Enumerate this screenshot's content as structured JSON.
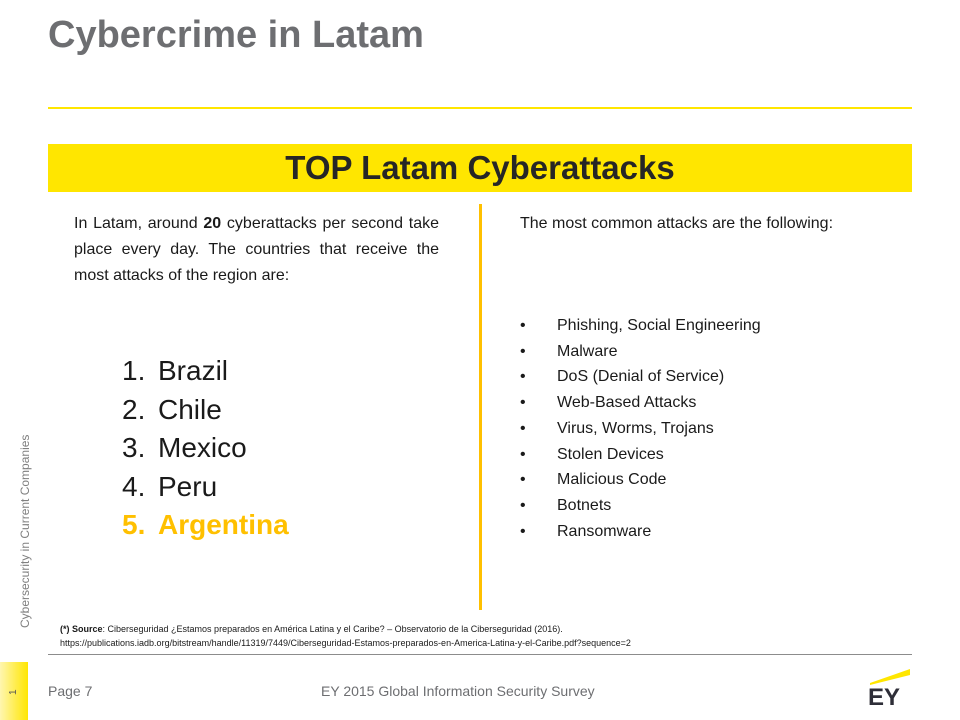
{
  "title": "Cybercrime in Latam",
  "banner": "TOP Latam Cyberattacks",
  "sidebar": {
    "label": "Cybersecurity in Current Companies",
    "page_number": "1"
  },
  "intro": {
    "before": "In Latam, around ",
    "count": "20",
    "after": " cyberattacks per second take place every day. The countries that receive the most attacks of the region are:"
  },
  "countries": [
    {
      "num": "1.",
      "name": "Brazil"
    },
    {
      "num": "2.",
      "name": "Chile"
    },
    {
      "num": "3.",
      "name": "Mexico"
    },
    {
      "num": "4.",
      "name": "Peru"
    },
    {
      "num": "5.",
      "name": "Argentina"
    }
  ],
  "attacks_intro": "The most common attacks are the following:",
  "attacks": [
    "Phishing, Social Engineering",
    "Malware",
    "DoS (Denial of Service)",
    "Web-Based Attacks",
    "Virus, Worms, Trojans",
    "Stolen Devices",
    "Malicious Code",
    "Botnets",
    "Ransomware"
  ],
  "bullet": "•",
  "source": {
    "label": "(*) Source",
    "text": ": Ciberseguridad ¿Estamos preparados en América Latina y el Caribe? –  Observatorio de la Ciberseguridad (2016).",
    "url": "https://publications.iadb.org/bitstream/handle/11319/7449/Ciberseguridad-Estamos-preparados-en-America-Latina-y-el-Caribe.pdf?sequence=2"
  },
  "footer": {
    "page": "Page 7",
    "survey": "EY 2015 Global Information Security Survey",
    "logo_text": "EY"
  },
  "colors": {
    "accent_yellow": "#ffe600",
    "highlight_gold": "#ffc000",
    "title_gray": "#6d6e71"
  }
}
